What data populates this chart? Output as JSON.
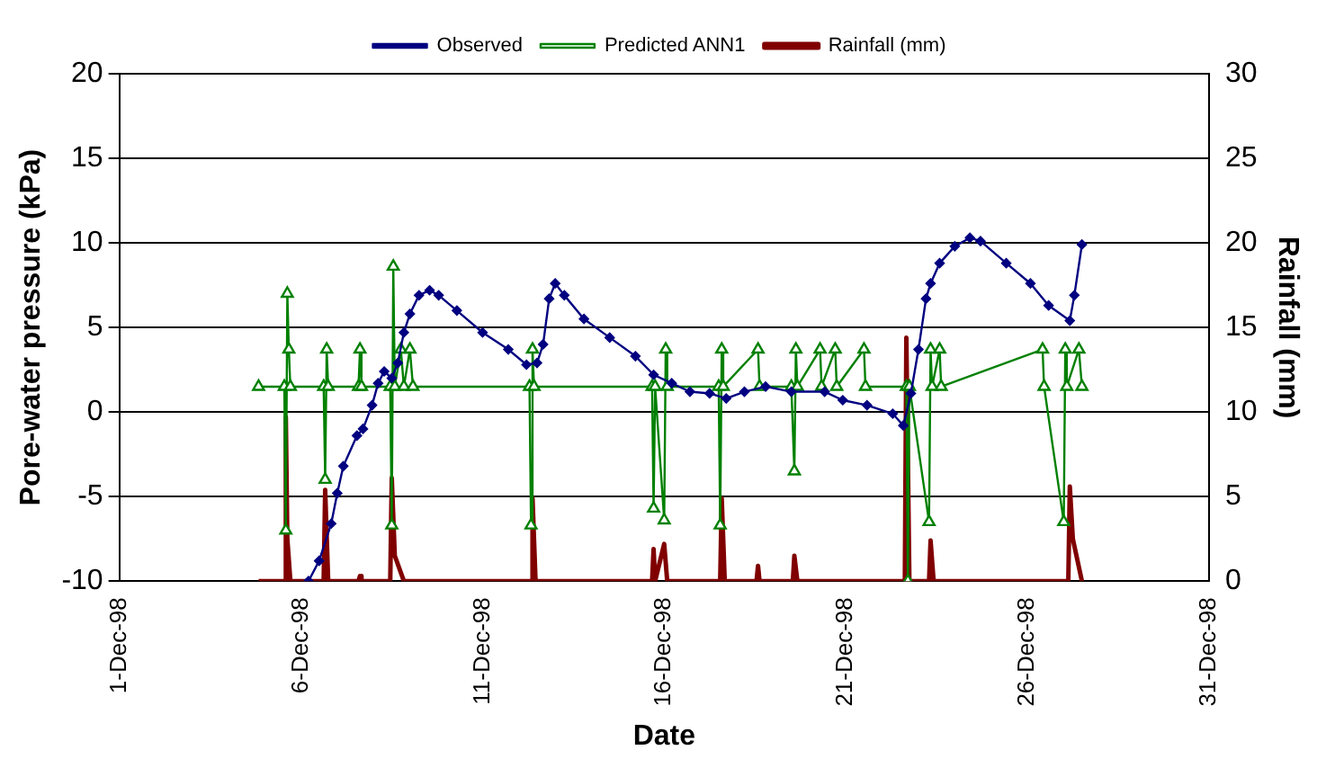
{
  "chart_data": {
    "type": "line",
    "xlabel": "Date",
    "ylabel": "Pore-water pressure (kPa)",
    "y2label": "Rainfall (mm)",
    "xlim": [
      "1998-12-01",
      "1998-12-31"
    ],
    "xticks": [
      {
        "value": "1998-12-01",
        "label": "1-Dec-98"
      },
      {
        "value": "1998-12-06",
        "label": "6-Dec-98"
      },
      {
        "value": "1998-12-11",
        "label": "11-Dec-98"
      },
      {
        "value": "1998-12-16",
        "label": "16-Dec-98"
      },
      {
        "value": "1998-12-21",
        "label": "21-Dec-98"
      },
      {
        "value": "1998-12-26",
        "label": "26-Dec-98"
      },
      {
        "value": "1998-12-31",
        "label": "31-Dec-98"
      }
    ],
    "ylim": [
      -10,
      20
    ],
    "yticks": [
      -10,
      -5,
      0,
      5,
      10,
      15,
      20
    ],
    "y2lim": [
      0,
      30
    ],
    "y2ticks": [
      0,
      5,
      10,
      15,
      20,
      25,
      30
    ],
    "grid": "y",
    "legend": "top",
    "series": [
      {
        "name": "Predicted ANN1",
        "color": "#008000",
        "marker": "triangle",
        "x": [
          "1998-12-04T20:00",
          "1998-12-05T13:00",
          "1998-12-05T14:00",
          "1998-12-05T15:00",
          "1998-12-05T16:00",
          "1998-12-05T17:00",
          "1998-12-06T15:00",
          "1998-12-06T16:00",
          "1998-12-06T17:00",
          "1998-12-06T18:00",
          "1998-12-07T14:00",
          "1998-12-07T15:00",
          "1998-12-07T16:00",
          "1998-12-08T11:00",
          "1998-12-08T12:00",
          "1998-12-08T13:00",
          "1998-12-08T14:00",
          "1998-12-08T18:00",
          "1998-12-08T20:00",
          "1998-12-09T00:00",
          "1998-12-09T02:00",
          "1998-12-12T07:00",
          "1998-12-12T08:00",
          "1998-12-12T09:00",
          "1998-12-12T10:00",
          "1998-12-15T16:00",
          "1998-12-15T17:00",
          "1998-12-15T18:00",
          "1998-12-16T00:00",
          "1998-12-16T01:00",
          "1998-12-16T02:00",
          "1998-12-17T12:00",
          "1998-12-17T13:00",
          "1998-12-17T14:00",
          "1998-12-17T15:00",
          "1998-12-18T14:00",
          "1998-12-18T15:00",
          "1998-12-19T12:00",
          "1998-12-19T14:00",
          "1998-12-19T15:00",
          "1998-12-19T16:00",
          "1998-12-20T07:00",
          "1998-12-20T08:00",
          "1998-12-20T17:00",
          "1998-12-20T18:00",
          "1998-12-21T12:00",
          "1998-12-21T13:00",
          "1998-12-22T16:00",
          "1998-12-22T17:00",
          "1998-12-22T18:00",
          "1998-12-23T07:00",
          "1998-12-23T08:00",
          "1998-12-23T09:00",
          "1998-12-23T14:00",
          "1998-12-23T15:00",
          "1998-12-26T10:00",
          "1998-12-26T11:00",
          "1998-12-27T00:00",
          "1998-12-27T01:00",
          "1998-12-27T02:00",
          "1998-12-27T10:00",
          "1998-12-27T12:00"
        ],
        "values": [
          1.5,
          1.5,
          -7,
          7,
          3.7,
          1.5,
          1.5,
          -4,
          3.7,
          1.5,
          1.5,
          3.7,
          1.5,
          1.5,
          -6.7,
          8.6,
          1.5,
          3.7,
          1.5,
          3.7,
          1.5,
          1.5,
          -6.7,
          3.7,
          1.5,
          1.5,
          -5.7,
          1.5,
          -6.4,
          3.7,
          1.5,
          1.5,
          -6.7,
          3.7,
          1.5,
          3.7,
          1.5,
          1.5,
          -3.5,
          3.7,
          1.5,
          3.7,
          1.5,
          3.7,
          1.5,
          3.7,
          1.5,
          1.5,
          -10,
          1.5,
          -6.5,
          3.7,
          1.5,
          3.7,
          1.5,
          3.7,
          1.5,
          -6.5,
          3.7,
          1.5,
          3.7,
          1.5
        ]
      },
      {
        "name": "Observed",
        "color": "#000080",
        "marker": "diamond",
        "x": [
          "1998-12-06T05:00",
          "1998-12-06T12:00",
          "1998-12-06T20:00",
          "1998-12-07T00:00",
          "1998-12-07T04:00",
          "1998-12-07T13:00",
          "1998-12-07T17:00",
          "1998-12-07T23:00",
          "1998-12-08T03:00",
          "1998-12-08T07:00",
          "1998-12-08T12:00",
          "1998-12-08T16:00",
          "1998-12-08T20:00",
          "1998-12-09T00:00",
          "1998-12-09T06:00",
          "1998-12-09T13:00",
          "1998-12-09T19:00",
          "1998-12-10T07:00",
          "1998-12-11T00:00",
          "1998-12-11T17:00",
          "1998-12-12T05:00",
          "1998-12-12T12:00",
          "1998-12-12T16:00",
          "1998-12-12T20:00",
          "1998-12-13T00:00",
          "1998-12-13T06:00",
          "1998-12-13T19:00",
          "1998-12-14T12:00",
          "1998-12-15T05:00",
          "1998-12-15T17:00",
          "1998-12-16T05:00",
          "1998-12-16T17:00",
          "1998-12-17T06:00",
          "1998-12-17T17:00",
          "1998-12-18T05:00",
          "1998-12-18T19:00",
          "1998-12-19T12:00",
          "1998-12-20T10:00",
          "1998-12-20T22:00",
          "1998-12-21T14:00",
          "1998-12-22T07:00",
          "1998-12-22T14:00",
          "1998-12-22T19:00",
          "1998-12-23T00:00",
          "1998-12-23T05:00",
          "1998-12-23T08:00",
          "1998-12-23T14:00",
          "1998-12-24T00:00",
          "1998-12-24T10:00",
          "1998-12-24T17:00",
          "1998-12-25T10:00",
          "1998-12-26T02:00",
          "1998-12-26T14:00",
          "1998-12-27T04:00",
          "1998-12-27T07:00",
          "1998-12-27T12:00"
        ],
        "values": [
          -10,
          -8.8,
          -6.6,
          -4.8,
          -3.2,
          -1.4,
          -1,
          0.4,
          1.7,
          2.4,
          2,
          2.9,
          4.7,
          5.8,
          6.9,
          7.2,
          6.9,
          6,
          4.7,
          3.7,
          2.8,
          2.9,
          4,
          6.7,
          7.6,
          6.9,
          5.5,
          4.4,
          3.3,
          2.2,
          1.7,
          1.2,
          1.1,
          0.8,
          1.2,
          1.5,
          1.2,
          1.2,
          0.7,
          0.4,
          -0.1,
          -0.8,
          1.1,
          3.7,
          6.7,
          7.6,
          8.8,
          9.8,
          10.3,
          10.1,
          8.8,
          7.6,
          6.3,
          5.4,
          6.9,
          9.9
        ]
      },
      {
        "name": "Rainfall (mm)",
        "color": "#800000",
        "marker": "none",
        "axis": "y2",
        "x": [
          "1998-12-04T20:00",
          "1998-12-05T13:00",
          "1998-12-05T14:00",
          "1998-12-05T15:00",
          "1998-12-05T17:00",
          "1998-12-06T15:00",
          "1998-12-06T16:00",
          "1998-12-06T18:00",
          "1998-12-07T14:00",
          "1998-12-07T15:00",
          "1998-12-07T16:00",
          "1998-12-08T11:00",
          "1998-12-08T12:00",
          "1998-12-08T14:00",
          "1998-12-08T20:00",
          "1998-12-12T08:00",
          "1998-12-12T09:00",
          "1998-12-12T11:00",
          "1998-12-15T16:00",
          "1998-12-15T17:00",
          "1998-12-15T18:00",
          "1998-12-16T00:00",
          "1998-12-16T02:00",
          "1998-12-17T13:00",
          "1998-12-17T14:00",
          "1998-12-17T16:00",
          "1998-12-18T13:00",
          "1998-12-18T14:00",
          "1998-12-18T15:00",
          "1998-12-19T13:00",
          "1998-12-19T14:00",
          "1998-12-19T16:00",
          "1998-12-22T15:00",
          "1998-12-22T16:00",
          "1998-12-22T18:00",
          "1998-12-23T07:00",
          "1998-12-23T08:00",
          "1998-12-23T10:00",
          "1998-12-27T03:00",
          "1998-12-27T04:00",
          "1998-12-27T06:00",
          "1998-12-27T12:00"
        ],
        "values": [
          0,
          0,
          9.7,
          2.5,
          0,
          0,
          5.4,
          0,
          0,
          0.3,
          0,
          0,
          6.1,
          1.5,
          0,
          0,
          4.9,
          0,
          0,
          1.9,
          0,
          2.2,
          0,
          0,
          4.9,
          0,
          0,
          0.9,
          0,
          0,
          1.5,
          0,
          0,
          14.4,
          0,
          0,
          2.4,
          0,
          0,
          5.6,
          2.5,
          0
        ]
      }
    ]
  }
}
